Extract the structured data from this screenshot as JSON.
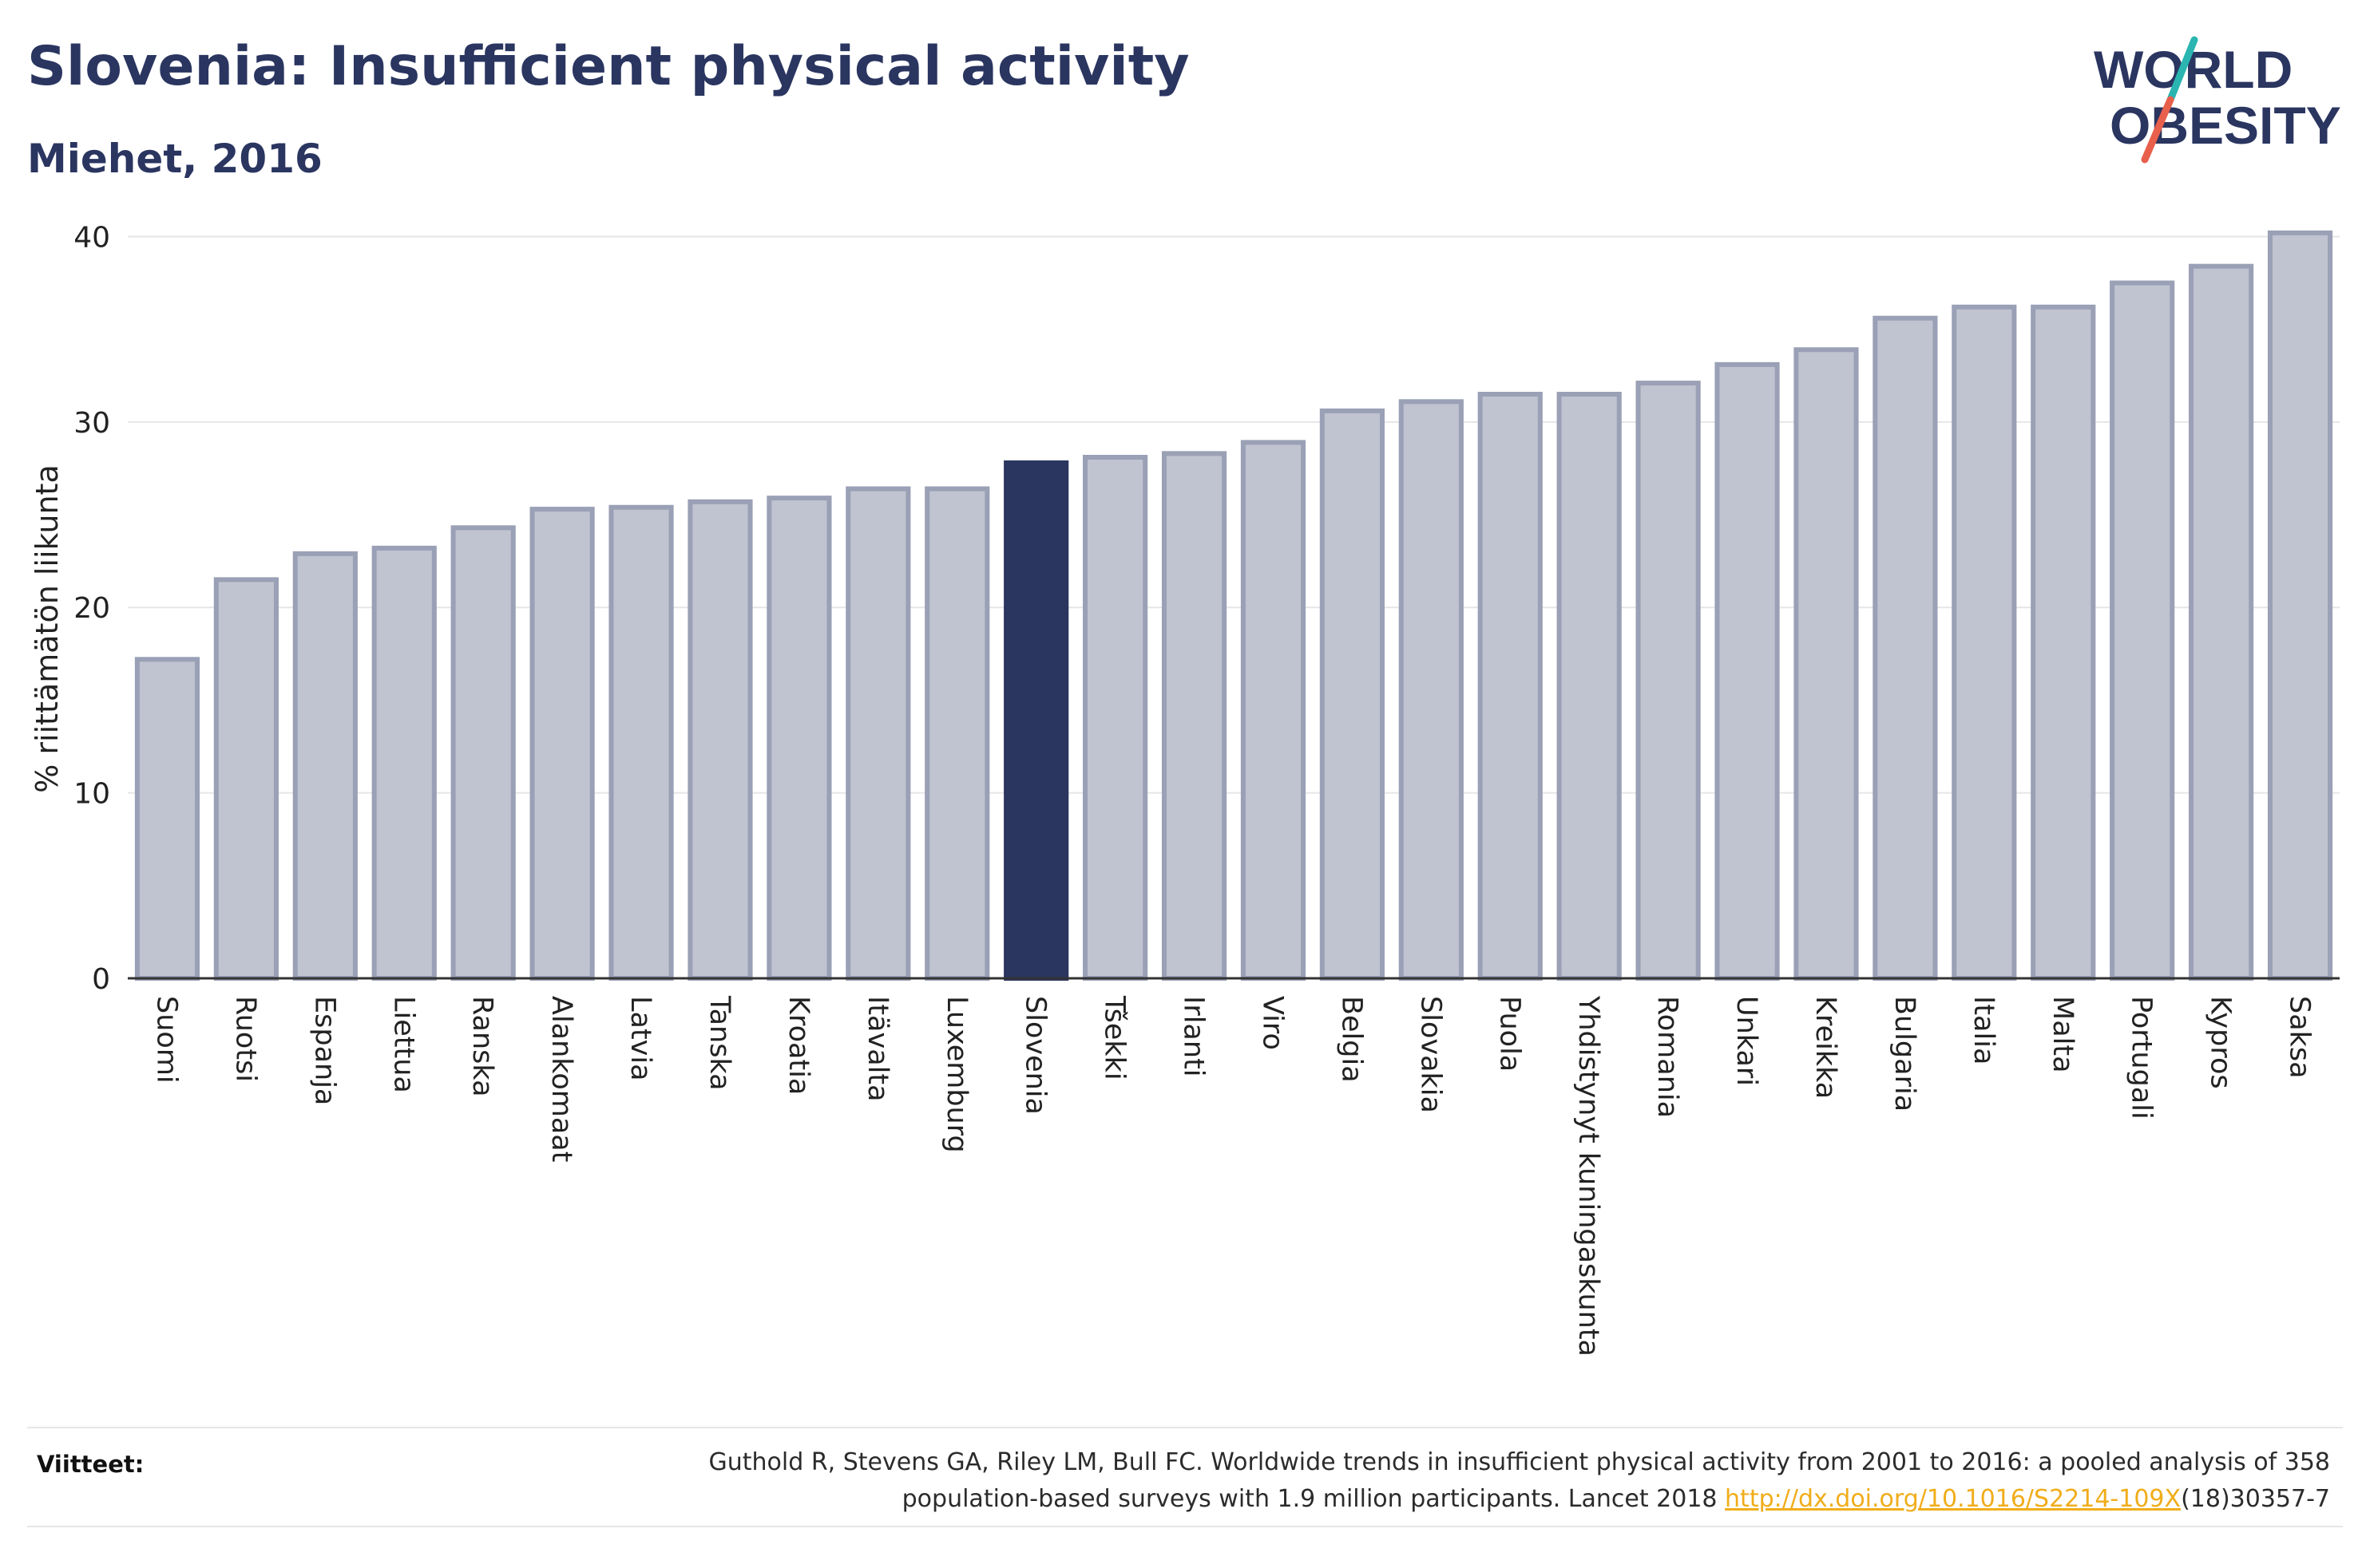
{
  "header": {
    "title": "Slovenia: Insufficient physical activity",
    "subtitle": "Miehet, 2016"
  },
  "logo": {
    "line1": "WORLD",
    "line2": "OBESITY",
    "slash_color_top": "#2ab5b0",
    "slash_color_bottom": "#e8604c"
  },
  "colors": {
    "bar_fill": "#c0c3d0",
    "bar_stroke": "#9aa0b5",
    "highlight": "#2a3560",
    "grid": "#e6e6ea",
    "axis": "#333333"
  },
  "chart_data": {
    "type": "bar",
    "ylabel": "% riittämätön liikunta",
    "ylim": [
      0,
      42
    ],
    "yticks": [
      0,
      10,
      20,
      30,
      40
    ],
    "highlight": "Slovenia",
    "grid": true,
    "categories": [
      "Suomi",
      "Ruotsi",
      "Espanja",
      "Liettua",
      "Ranska",
      "Alankomaat",
      "Latvia",
      "Tanska",
      "Kroatia",
      "Itävalta",
      "Luxemburg",
      "Slovenia",
      "Tšekki",
      "Irlanti",
      "Viro",
      "Belgia",
      "Slovakia",
      "Puola",
      "Yhdistynyt kuningaskunta",
      "Romania",
      "Unkari",
      "Kreikka",
      "Bulgaria",
      "Italia",
      "Malta",
      "Portugali",
      "Kypros",
      "Saksa"
    ],
    "values": [
      17.2,
      21.5,
      22.9,
      23.2,
      24.3,
      25.3,
      25.4,
      25.7,
      25.9,
      26.4,
      26.4,
      27.8,
      28.1,
      28.3,
      28.9,
      30.6,
      31.1,
      31.5,
      31.5,
      32.1,
      33.1,
      33.9,
      35.6,
      36.2,
      36.2,
      37.5,
      38.4,
      40.2
    ]
  },
  "footer": {
    "label": "Viitteet:",
    "ref_line1": "Guthold R, Stevens GA, Riley LM, Bull FC. Worldwide trends in insufficient physical activity from 2001 to 2016: a pooled analysis of 358",
    "ref_line2_pre": "population-based surveys with 1.9 million participants. Lancet 2018 ",
    "ref_link": "http://dx.doi.org/10.1016/S2214-109X",
    "ref_line2_post": "(18)30357-7"
  }
}
